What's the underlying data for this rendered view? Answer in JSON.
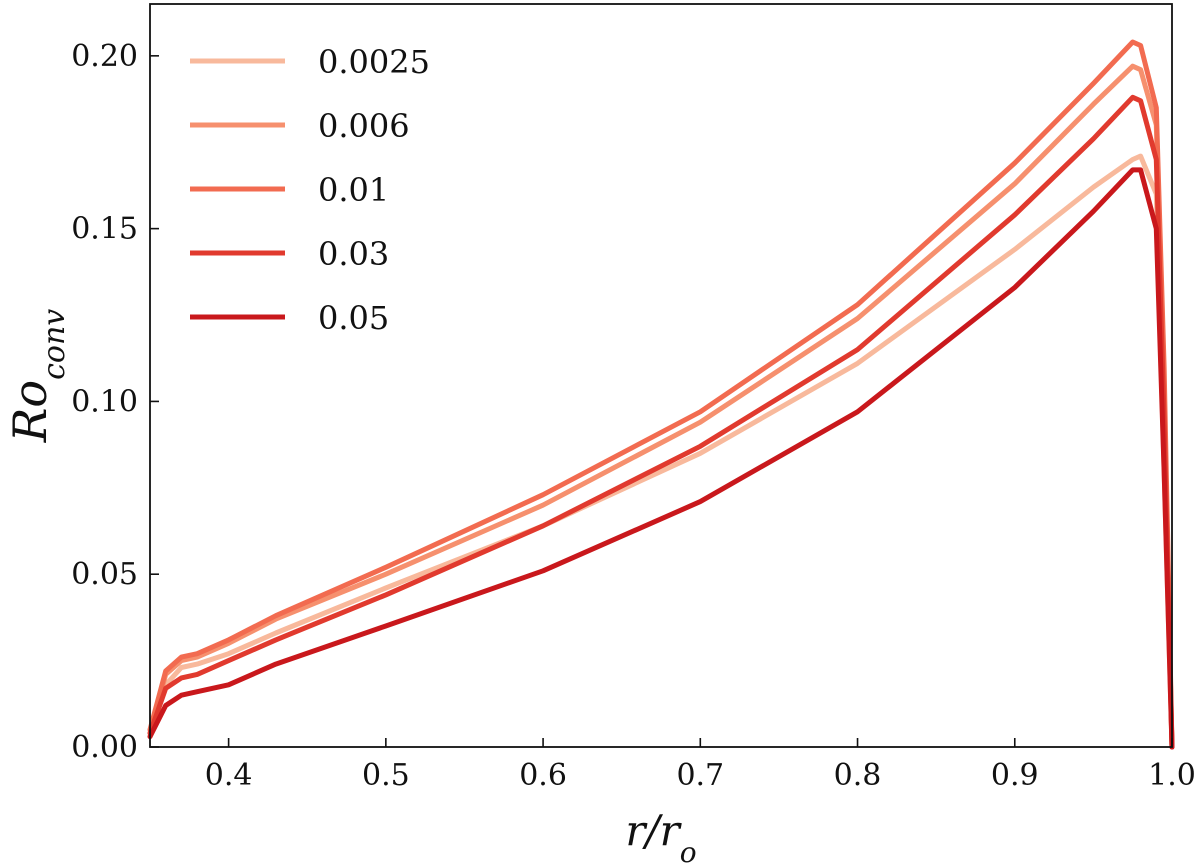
{
  "chart_data": {
    "type": "line",
    "title": "",
    "xlabel": {
      "main": "r/r",
      "sub": "o"
    },
    "ylabel": {
      "main": "Ro",
      "sub": "conv"
    },
    "xlim": [
      0.35,
      1.0
    ],
    "ylim": [
      0.0,
      0.215
    ],
    "x_ticks": [
      0.4,
      0.5,
      0.6,
      0.7,
      0.8,
      0.9,
      1.0
    ],
    "x_tick_labels": [
      "0.4",
      "0.5",
      "0.6",
      "0.7",
      "0.8",
      "0.9",
      "1.0"
    ],
    "y_ticks": [
      0.0,
      0.05,
      0.1,
      0.15,
      0.2
    ],
    "y_tick_labels": [
      "0.00",
      "0.05",
      "0.10",
      "0.15",
      "0.20"
    ],
    "grid": false,
    "legend_position": "top-left",
    "series": [
      {
        "name": "0.0025",
        "color": "#f8b99c",
        "x": [
          0.35,
          0.36,
          0.37,
          0.38,
          0.4,
          0.43,
          0.5,
          0.6,
          0.7,
          0.8,
          0.9,
          0.95,
          0.975,
          0.98,
          0.99,
          0.995,
          1.0
        ],
        "y": [
          0.003,
          0.018,
          0.023,
          0.024,
          0.027,
          0.033,
          0.046,
          0.064,
          0.085,
          0.111,
          0.144,
          0.162,
          0.17,
          0.171,
          0.16,
          0.08,
          0.0
        ]
      },
      {
        "name": "0.006",
        "color": "#f6906e",
        "x": [
          0.35,
          0.36,
          0.37,
          0.38,
          0.4,
          0.43,
          0.5,
          0.6,
          0.7,
          0.8,
          0.9,
          0.95,
          0.975,
          0.98,
          0.99,
          0.995,
          1.0
        ],
        "y": [
          0.004,
          0.021,
          0.025,
          0.026,
          0.03,
          0.037,
          0.05,
          0.07,
          0.094,
          0.124,
          0.163,
          0.186,
          0.197,
          0.196,
          0.18,
          0.1,
          0.0
        ]
      },
      {
        "name": "0.01",
        "color": "#f26b50",
        "x": [
          0.35,
          0.36,
          0.37,
          0.38,
          0.4,
          0.43,
          0.5,
          0.6,
          0.7,
          0.8,
          0.9,
          0.95,
          0.975,
          0.98,
          0.99,
          0.995,
          1.0
        ],
        "y": [
          0.005,
          0.022,
          0.026,
          0.027,
          0.031,
          0.038,
          0.052,
          0.073,
          0.097,
          0.128,
          0.169,
          0.192,
          0.204,
          0.203,
          0.185,
          0.11,
          0.0
        ]
      },
      {
        "name": "0.03",
        "color": "#e13a2e",
        "x": [
          0.35,
          0.36,
          0.37,
          0.38,
          0.4,
          0.43,
          0.5,
          0.6,
          0.7,
          0.8,
          0.9,
          0.95,
          0.975,
          0.98,
          0.99,
          0.995,
          1.0
        ],
        "y": [
          0.004,
          0.017,
          0.02,
          0.021,
          0.025,
          0.031,
          0.044,
          0.064,
          0.087,
          0.115,
          0.154,
          0.176,
          0.188,
          0.187,
          0.17,
          0.095,
          0.0
        ]
      },
      {
        "name": "0.05",
        "color": "#c9181c",
        "x": [
          0.35,
          0.36,
          0.37,
          0.38,
          0.4,
          0.43,
          0.5,
          0.6,
          0.7,
          0.8,
          0.9,
          0.95,
          0.975,
          0.98,
          0.99,
          0.995,
          1.0
        ],
        "y": [
          0.003,
          0.012,
          0.015,
          0.016,
          0.018,
          0.024,
          0.035,
          0.051,
          0.071,
          0.097,
          0.133,
          0.155,
          0.167,
          0.167,
          0.15,
          0.08,
          0.0
        ]
      }
    ]
  }
}
